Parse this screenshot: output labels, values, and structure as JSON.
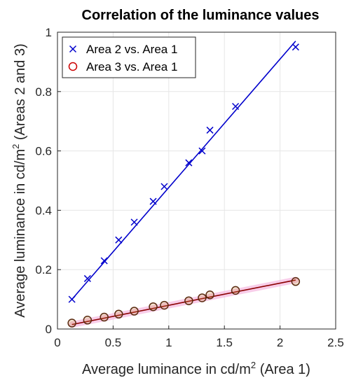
{
  "chart_data": {
    "type": "scatter",
    "title": "Correlation of the luminance values",
    "xlabel": {
      "prefix": "Average luminance in cd/m",
      "superscript": "2",
      "suffix": " (Area 1)"
    },
    "ylabel": {
      "prefix": "Average luminance in cd/m",
      "superscript": "2",
      "suffix": " (Areas 2 and 3)"
    },
    "xlim": [
      0,
      2.5
    ],
    "ylim": [
      0,
      1
    ],
    "xticks": [
      0,
      0.5,
      1,
      1.5,
      2,
      2.5
    ],
    "xtick_labels": [
      "0",
      "0.5",
      "1",
      "1.5",
      "2",
      "2.5"
    ],
    "yticks": [
      0,
      0.2,
      0.4,
      0.6,
      0.8,
      1
    ],
    "ytick_labels": [
      "0",
      "0.2",
      "0.4",
      "0.6",
      "0.8",
      "1"
    ],
    "grid": true,
    "legend_position": "top-left",
    "series": [
      {
        "name": "Area 2 vs. Area 1",
        "marker": "x",
        "color": "#0000cc",
        "line_color": "#0000cc",
        "x": [
          0.13,
          0.27,
          0.42,
          0.55,
          0.69,
          0.86,
          0.96,
          1.18,
          1.3,
          1.37,
          1.6,
          2.14
        ],
        "y": [
          0.1,
          0.17,
          0.23,
          0.3,
          0.36,
          0.43,
          0.48,
          0.56,
          0.6,
          0.67,
          0.75,
          0.95
        ],
        "fit": [
          [
            0.13,
            0.1
          ],
          [
            2.14,
            0.97
          ]
        ]
      },
      {
        "name": "Area 3 vs. Area 1",
        "marker": "o",
        "color": "#cc0000",
        "line_color": "#8b0000",
        "x": [
          0.13,
          0.27,
          0.42,
          0.55,
          0.69,
          0.86,
          0.96,
          1.18,
          1.3,
          1.37,
          1.6,
          2.14
        ],
        "y": [
          0.02,
          0.03,
          0.04,
          0.05,
          0.06,
          0.075,
          0.08,
          0.095,
          0.105,
          0.115,
          0.13,
          0.16
        ],
        "fit": [
          [
            0.13,
            0.015
          ],
          [
            2.14,
            0.165
          ]
        ]
      }
    ]
  }
}
